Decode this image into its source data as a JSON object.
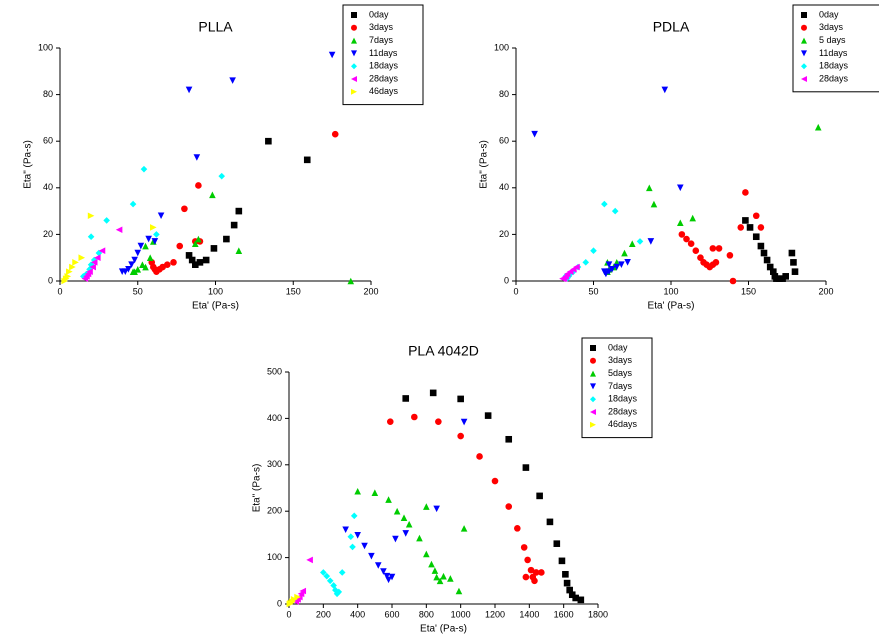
{
  "chart_data": [
    {
      "type": "scatter",
      "title": "PLLA",
      "xlabel": "Eta' (Pa-s)",
      "ylabel": "Eta\" (Pa-s)",
      "xlim": [
        0,
        200
      ],
      "ylim": [
        0,
        100
      ],
      "xticks": [
        0,
        50,
        100,
        150,
        200
      ],
      "yticks": [
        0,
        20,
        40,
        60,
        80,
        100
      ],
      "legend": "top-right",
      "series": [
        {
          "name": "0day",
          "color": "#000000",
          "marker": "square",
          "x": [
            134,
            159,
            115,
            112,
            107,
            99,
            94,
            90,
            87,
            85,
            83
          ],
          "values": [
            60,
            52,
            30,
            24,
            18,
            14,
            9,
            8,
            7,
            9,
            11
          ]
        },
        {
          "name": "3days",
          "color": "#ff0000",
          "marker": "circle",
          "x": [
            177,
            89,
            80,
            90,
            87,
            77,
            73,
            69,
            66,
            64,
            62,
            61,
            60,
            59
          ],
          "values": [
            63,
            41,
            31,
            17,
            17,
            15,
            8,
            7,
            6,
            5,
            4,
            5,
            6,
            8
          ]
        },
        {
          "name": "7days",
          "color": "#00cc00",
          "marker": "triangle-up",
          "x": [
            187,
            98,
            89,
            115,
            60,
            55,
            58,
            53,
            50,
            48,
            47,
            55,
            87
          ],
          "values": [
            0,
            37,
            18,
            13,
            17,
            15,
            10,
            7,
            5,
            4,
            4,
            6,
            16
          ]
        },
        {
          "name": "11days",
          "color": "#0000ff",
          "marker": "triangle-down",
          "x": [
            175,
            111,
            83,
            88,
            65,
            57,
            52,
            50,
            48,
            46,
            44,
            42,
            40,
            61
          ],
          "values": [
            97,
            86,
            82,
            53,
            28,
            18,
            15,
            12,
            9,
            7,
            5,
            4,
            4,
            17
          ]
        },
        {
          "name": "18days",
          "color": "#00ffff",
          "marker": "diamond",
          "x": [
            54,
            104,
            47,
            30,
            20,
            62,
            25,
            22,
            20,
            19,
            17,
            16,
            15
          ],
          "values": [
            48,
            45,
            33,
            26,
            19,
            20,
            12,
            9,
            7,
            5,
            3,
            2,
            2
          ]
        },
        {
          "name": "28days",
          "color": "#ff00ff",
          "marker": "triangle-left",
          "x": [
            38,
            27,
            24,
            22,
            21,
            19,
            18,
            17,
            16
          ],
          "values": [
            22,
            13,
            10,
            8,
            6,
            4,
            3,
            2,
            1
          ]
        },
        {
          "name": "46days",
          "color": "#ffff00",
          "marker": "triangle-right",
          "x": [
            20,
            60,
            14,
            10,
            8,
            6,
            5,
            4,
            3
          ],
          "values": [
            28,
            23,
            10,
            8,
            6,
            4,
            2,
            1,
            0
          ]
        }
      ]
    },
    {
      "type": "scatter",
      "title": "PDLA",
      "xlabel": "Eta' (Pa-s)",
      "ylabel": "Eta\" (Pa-s)",
      "xlim": [
        0,
        200
      ],
      "ylim": [
        0,
        100
      ],
      "xticks": [
        0,
        50,
        100,
        150,
        200
      ],
      "yticks": [
        0,
        20,
        40,
        60,
        80,
        100
      ],
      "legend": "top-right",
      "series": [
        {
          "name": "0day",
          "color": "#000000",
          "marker": "square",
          "x": [
            178,
            179,
            180,
            148,
            151,
            155,
            158,
            160,
            162,
            164,
            166,
            167,
            168,
            170,
            172,
            174
          ],
          "values": [
            12,
            8,
            4,
            26,
            23,
            19,
            15,
            12,
            9,
            6,
            4,
            2,
            1,
            1,
            1,
            2
          ]
        },
        {
          "name": "3days",
          "color": "#ff0000",
          "marker": "circle",
          "x": [
            148,
            155,
            158,
            145,
            127,
            131,
            107,
            110,
            113,
            116,
            119,
            121,
            123,
            125,
            127,
            129,
            138,
            140
          ],
          "values": [
            38,
            28,
            23,
            23,
            14,
            14,
            20,
            18,
            16,
            13,
            10,
            8,
            7,
            6,
            7,
            8,
            11,
            0
          ]
        },
        {
          "name": "5 days",
          "color": "#00cc00",
          "marker": "triangle-up",
          "x": [
            195,
            86,
            89,
            106,
            114,
            75,
            70,
            65,
            63,
            60,
            59,
            59
          ],
          "values": [
            66,
            40,
            33,
            25,
            27,
            16,
            12,
            8,
            6,
            5,
            4,
            8
          ]
        },
        {
          "name": "11days",
          "color": "#0000ff",
          "marker": "triangle-down",
          "x": [
            12,
            96,
            106,
            87,
            72,
            68,
            65,
            62,
            60,
            58,
            57,
            60
          ],
          "values": [
            63,
            82,
            40,
            17,
            8,
            7,
            6,
            5,
            4,
            3,
            4,
            7
          ]
        },
        {
          "name": "18days",
          "color": "#00ffff",
          "marker": "diamond",
          "x": [
            57,
            64,
            80,
            50,
            45,
            40,
            37,
            35,
            34,
            33,
            32
          ],
          "values": [
            33,
            30,
            17,
            13,
            8,
            6,
            4,
            3,
            2,
            1,
            2
          ]
        },
        {
          "name": "28days",
          "color": "#ff00ff",
          "marker": "triangle-left",
          "x": [
            39,
            37,
            35,
            33,
            32,
            31,
            30
          ],
          "values": [
            6,
            5,
            4,
            3,
            2,
            1,
            1
          ]
        }
      ]
    },
    {
      "type": "scatter",
      "title": "PLA 4042D",
      "xlabel": "Eta' (Pa-s)",
      "ylabel": "Eta\" (Pa-s)",
      "xlim": [
        0,
        1800
      ],
      "ylim": [
        0,
        500
      ],
      "xticks": [
        0,
        200,
        400,
        600,
        800,
        1000,
        1200,
        1400,
        1600,
        1800
      ],
      "yticks": [
        0,
        100,
        200,
        300,
        400,
        500
      ],
      "legend": "top-right",
      "series": [
        {
          "name": "0day",
          "color": "#000000",
          "marker": "square",
          "x": [
            680,
            840,
            1000,
            1160,
            1280,
            1380,
            1460,
            1520,
            1560,
            1590,
            1610,
            1620,
            1635,
            1650,
            1670,
            1700
          ],
          "values": [
            443,
            455,
            442,
            406,
            355,
            294,
            233,
            177,
            130,
            93,
            64,
            45,
            30,
            20,
            13,
            9
          ]
        },
        {
          "name": "3days",
          "color": "#ff0000",
          "marker": "circle",
          "x": [
            590,
            730,
            870,
            1000,
            1110,
            1200,
            1280,
            1330,
            1370,
            1390,
            1410,
            1420,
            1430,
            1380,
            1440,
            1470
          ],
          "values": [
            393,
            403,
            393,
            362,
            318,
            265,
            210,
            163,
            122,
            95,
            73,
            58,
            50,
            58,
            68,
            68
          ]
        },
        {
          "name": "5days",
          "color": "#00cc00",
          "marker": "triangle-up",
          "x": [
            400,
            500,
            580,
            630,
            670,
            700,
            760,
            800,
            830,
            850,
            860,
            880,
            900,
            940,
            990,
            1020,
            800
          ],
          "values": [
            243,
            240,
            225,
            200,
            186,
            172,
            142,
            108,
            86,
            72,
            58,
            50,
            60,
            55,
            28,
            163,
            210
          ]
        },
        {
          "name": "7days",
          "color": "#0000ff",
          "marker": "triangle-down",
          "x": [
            330,
            400,
            440,
            480,
            520,
            550,
            570,
            580,
            600,
            620,
            680,
            860,
            1020
          ],
          "values": [
            160,
            148,
            125,
            103,
            83,
            70,
            60,
            52,
            58,
            140,
            152,
            205,
            392
          ]
        },
        {
          "name": "18days",
          "color": "#00ffff",
          "marker": "diamond",
          "x": [
            380,
            360,
            370,
            310,
            200,
            220,
            240,
            260,
            270,
            280,
            290
          ],
          "values": [
            190,
            145,
            123,
            68,
            68,
            60,
            50,
            40,
            30,
            22,
            26
          ]
        },
        {
          "name": "28days",
          "color": "#ff00ff",
          "marker": "triangle-left",
          "x": [
            120,
            80,
            70,
            60,
            50,
            40
          ],
          "values": [
            95,
            28,
            22,
            15,
            10,
            5
          ]
        },
        {
          "name": "46days",
          "color": "#ffff00",
          "marker": "triangle-right",
          "x": [
            50,
            30,
            20,
            10,
            5
          ],
          "values": [
            15,
            10,
            5,
            2,
            0
          ]
        }
      ]
    }
  ]
}
